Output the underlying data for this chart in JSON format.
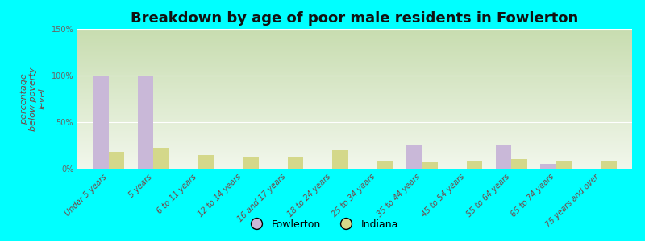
{
  "title": "Breakdown by age of poor male residents in Fowlerton",
  "ylabel": "percentage\nbelow poverty\nlevel",
  "categories": [
    "Under 5 years",
    "5 years",
    "6 to 11 years",
    "12 to 14 years",
    "16 and 17 years",
    "18 to 24 years",
    "25 to 34 years",
    "35 to 44 years",
    "45 to 54 years",
    "55 to 64 years",
    "65 to 74 years",
    "75 years and over"
  ],
  "fowlerton": [
    100,
    100,
    0,
    0,
    0,
    0,
    0,
    25,
    0,
    25,
    5,
    0
  ],
  "indiana": [
    18,
    22,
    15,
    13,
    13,
    20,
    9,
    7,
    9,
    10,
    9,
    8
  ],
  "fowlerton_color": "#c9b8d8",
  "indiana_color": "#d4d88a",
  "plot_bg_top": "#c8ddb0",
  "plot_bg_bottom": "#f2f7ec",
  "outer_bg": "#00ffff",
  "ylim": [
    0,
    150
  ],
  "yticks": [
    0,
    50,
    100,
    150
  ],
  "ytick_labels": [
    "0%",
    "50%",
    "100%",
    "150%"
  ],
  "bar_width": 0.35,
  "title_fontsize": 13,
  "axis_label_fontsize": 8,
  "tick_fontsize": 7,
  "legend_fontsize": 9,
  "xlim_min": -0.7,
  "xlim_max": 11.7
}
